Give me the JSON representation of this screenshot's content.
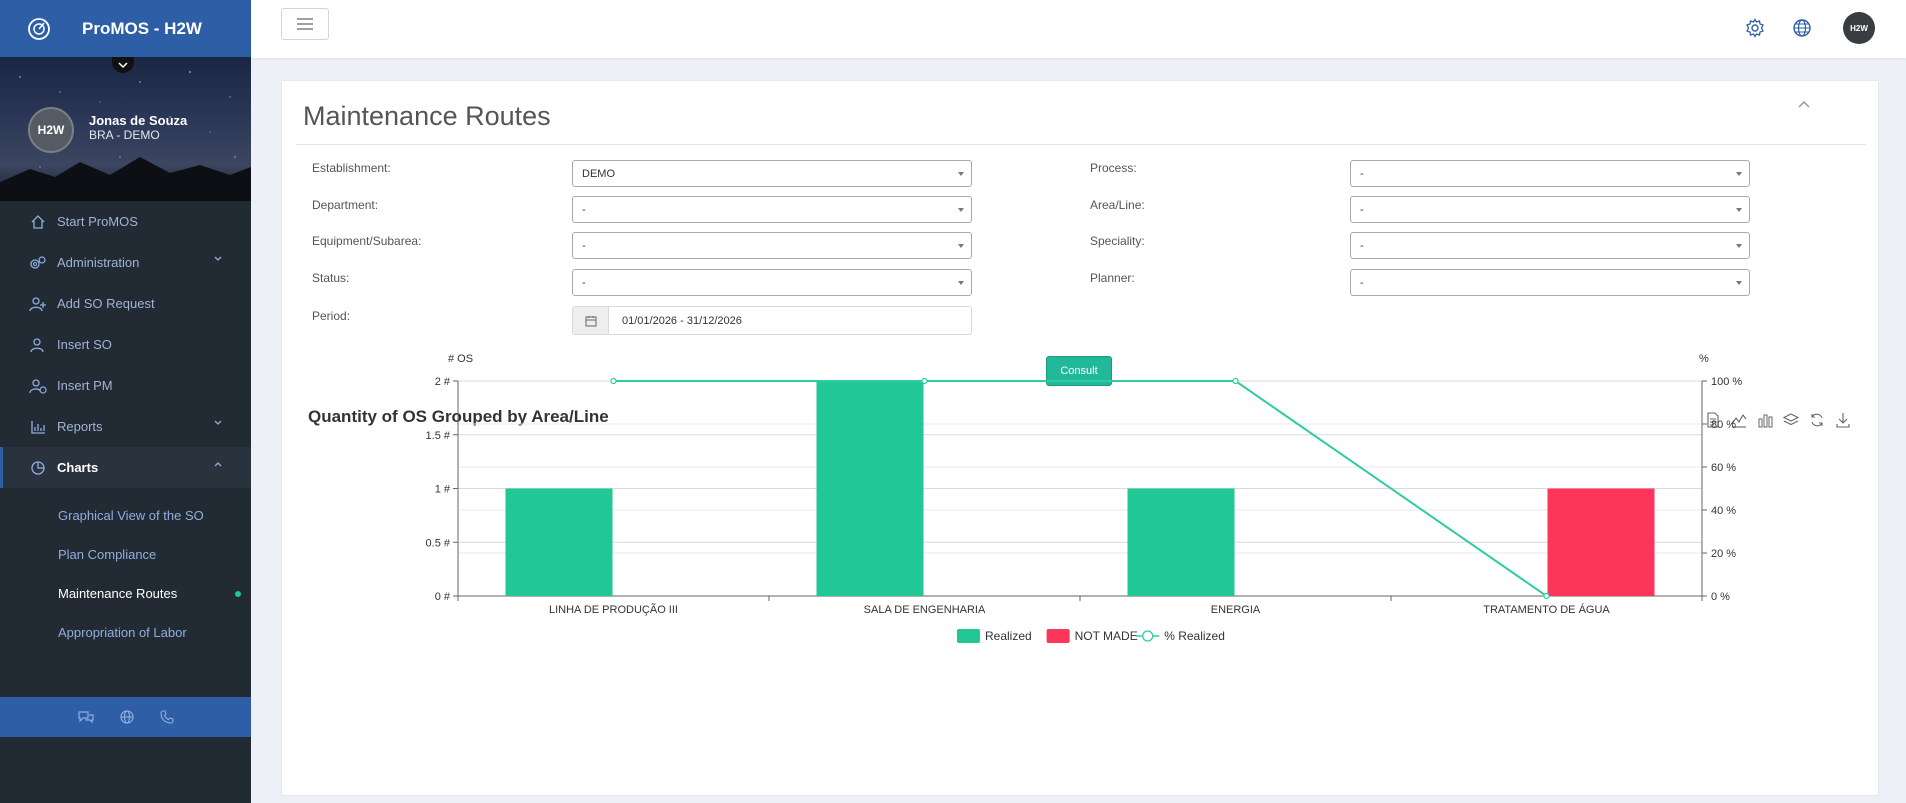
{
  "app": {
    "brand": "ProMOS - H2W"
  },
  "user": {
    "avatar_text": "H2W",
    "name": "Jonas de Souza",
    "org": "BRA - DEMO"
  },
  "topbar": {
    "avatar_text": "H2W"
  },
  "nav": {
    "items": [
      {
        "label": "Start ProMOS",
        "icon": "home-icon"
      },
      {
        "label": "Administration",
        "icon": "gears-icon"
      },
      {
        "label": "Add SO Request",
        "icon": "add-user-icon"
      },
      {
        "label": "Insert SO",
        "icon": "user-icon"
      },
      {
        "label": "Insert PM",
        "icon": "user-clock-icon"
      },
      {
        "label": "Reports",
        "icon": "bar-chart-icon"
      },
      {
        "label": "Charts",
        "icon": "pie-chart-icon"
      }
    ],
    "charts_sub": [
      {
        "label": "Graphical View of the SO"
      },
      {
        "label": "Plan Compliance"
      },
      {
        "label": "Maintenance Routes"
      },
      {
        "label": "Appropriation of Labor"
      }
    ]
  },
  "page": {
    "title": "Maintenance Routes"
  },
  "filters": {
    "establishment": {
      "label": "Establishment:",
      "value": "DEMO"
    },
    "department": {
      "label": "Department:",
      "value": "-"
    },
    "equipment": {
      "label": "Equipment/Subarea:",
      "value": "-"
    },
    "status": {
      "label": "Status:",
      "value": "-"
    },
    "period": {
      "label": "Period:",
      "value": "01/01/2026 - 31/12/2026"
    },
    "process": {
      "label": "Process:",
      "value": "-"
    },
    "area_line": {
      "label": "Area/Line:",
      "value": "-"
    },
    "speciality": {
      "label": "Speciality:",
      "value": "-"
    },
    "planner": {
      "label": "Planner:",
      "value": "-"
    },
    "consult_label": "Consult"
  },
  "chart_data": {
    "type": "bar",
    "title": "Quantity of OS Grouped by Area/Line",
    "categories": [
      "LINHA DE PRODUÇÃO III",
      "SALA DE ENGENHARIA",
      "ENERGIA",
      "TRATAMENTO DE ÁGUA"
    ],
    "series": [
      {
        "name": "Realized",
        "type": "bar",
        "axis": "left",
        "color": "#21c795",
        "values": [
          1,
          2,
          1,
          0
        ]
      },
      {
        "name": "NOT MADE",
        "type": "bar",
        "axis": "left",
        "color": "#fc365a",
        "values": [
          0,
          0,
          0,
          1
        ]
      },
      {
        "name": "% Realized",
        "type": "line",
        "axis": "right",
        "color": "#2fcca0",
        "values": [
          100,
          100,
          100,
          0
        ]
      }
    ],
    "ylabel": "# OS",
    "ylabel_right": "%",
    "ylim": [
      0,
      2
    ],
    "ylim_right": [
      0,
      100
    ],
    "yticks_left": [
      "0 #",
      "0.5 #",
      "1 #",
      "1.5 #",
      "2 #"
    ],
    "yticks_right": [
      "0 %",
      "20 %",
      "40 %",
      "60 %",
      "80 %",
      "100 %"
    ],
    "grid": true,
    "legend": "bottom-center"
  },
  "colors": {
    "brand": "#2e5ea6",
    "sidebar": "#222a33",
    "accent": "#22b99a",
    "realized": "#21c795",
    "not_made": "#fc365a"
  }
}
